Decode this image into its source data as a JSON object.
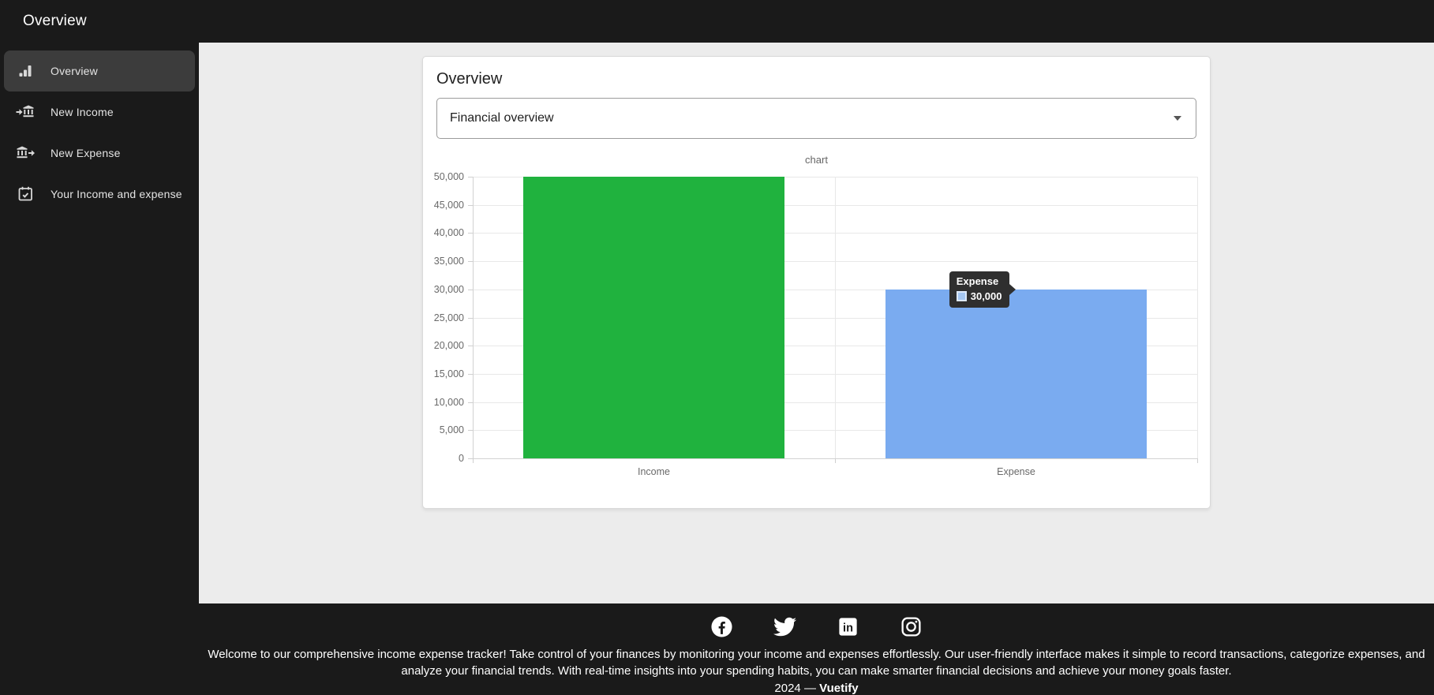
{
  "app": {
    "top_title": "Overview"
  },
  "sidebar": {
    "items": [
      {
        "label": "Overview",
        "icon": "bar-chart-icon",
        "selected": true
      },
      {
        "label": "New Income",
        "icon": "income-bank-icon",
        "selected": false
      },
      {
        "label": "New Expense",
        "icon": "expense-bank-icon",
        "selected": false
      },
      {
        "label": "Your Income and expense",
        "icon": "calendar-check-icon",
        "selected": false
      }
    ]
  },
  "main": {
    "card": {
      "title": "Overview",
      "select": {
        "value": "Financial overview",
        "icon": "chevron-down-icon"
      }
    }
  },
  "chart_data": {
    "type": "bar",
    "title": "chart",
    "categories": [
      "Income",
      "Expense"
    ],
    "values": [
      50000,
      30000
    ],
    "bar_colors": [
      "#20b23e",
      "#7aabf0"
    ],
    "ylim": [
      0,
      50000
    ],
    "ytick_step": 5000,
    "ytick_labels": [
      "0",
      "5,000",
      "10,000",
      "15,000",
      "20,000",
      "25,000",
      "30,000",
      "35,000",
      "40,000",
      "45,000",
      "50,000"
    ],
    "grid": true,
    "legend": "none",
    "tooltip": {
      "title": "Expense",
      "value_label": "30,000",
      "swatch_color": "#a5c7f2"
    }
  },
  "footer": {
    "social_icons": [
      "facebook-icon",
      "twitter-icon",
      "linkedin-icon",
      "instagram-icon"
    ],
    "description": "Welcome to our comprehensive income expense tracker! Take control of your finances by monitoring your income and expenses effortlessly. Our user-friendly interface makes it simple to record transactions, categorize expenses, and analyze your financial trends. With real-time insights into your spending habits, you can make smarter financial decisions and achieve your money goals faster.",
    "year_prefix": "2024 — ",
    "brand": "Vuetify"
  },
  "colors": {
    "dark_bg": "#1a1a1a",
    "sidebar_selected_bg": "#3c3c3c",
    "main_bg": "#ececec",
    "card_bg": "#ffffff",
    "income_bar": "#20b23e",
    "expense_bar": "#7aabf0",
    "tooltip_bg": "#2f2f2f"
  }
}
